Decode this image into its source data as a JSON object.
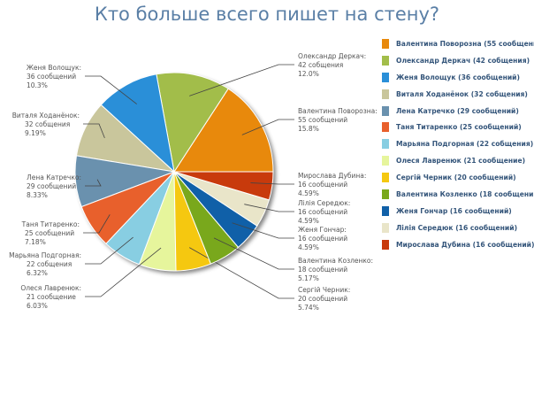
{
  "chart_data": {
    "type": "pie",
    "title": "Кто больше всего пишет на стену?",
    "legend_position": "right",
    "slices": [
      {
        "name": "Валентина Поворозна",
        "value": 55,
        "label": "Валентина Поворозна:",
        "count_text": "55 сообщений",
        "percent": "15.8%",
        "legend": "Валентина Поворозна (55 сообщений)",
        "color": "#e8890c"
      },
      {
        "name": "Олександр Деркач",
        "value": 42,
        "label": "Олександр Деркач:",
        "count_text": "42 собщения",
        "percent": "12.0%",
        "legend": "Олександр Деркач (42 собщения)",
        "color": "#a2bd4a"
      },
      {
        "name": "Женя Волощук",
        "value": 36,
        "label": "Женя Волощук:",
        "count_text": "36 сообщений",
        "percent": "10.3%",
        "legend": "Женя Волощук (36 сообщений)",
        "color": "#2a8fd8"
      },
      {
        "name": "Виталя Ходанёнок",
        "value": 32,
        "label": "Виталя Ходанёнок:",
        "count_text": "32 собщения",
        "percent": "9.19%",
        "legend": "Виталя Ходанёнок (32 собщения)",
        "color": "#c9c69c"
      },
      {
        "name": "Лена Катречко",
        "value": 29,
        "label": "Лена Катречко:",
        "count_text": "29 сообщений",
        "percent": "8.33%",
        "legend": "Лена Катречко (29 сообщений)",
        "color": "#6a91ae"
      },
      {
        "name": "Таня Титаренко",
        "value": 25,
        "label": "Таня Титаренко:",
        "count_text": "25 сообщений",
        "percent": "7.18%",
        "legend": "Таня Титаренко (25 сообщений)",
        "color": "#e8602c"
      },
      {
        "name": "Марьяна Подгорная",
        "value": 22,
        "label": "Марьяна Подгорная:",
        "count_text": "22 собщения",
        "percent": "6.32%",
        "legend": "Марьяна Подгорная (22 собщения)",
        "color": "#88cee2"
      },
      {
        "name": "Олеся Лавренюк",
        "value": 21,
        "label": "Олеся Лавренюк:",
        "count_text": "21 сообщение",
        "percent": "6.03%",
        "legend": "Олеся Лавренюк (21 сообщение)",
        "color": "#e6f59c"
      },
      {
        "name": "Сергій Черник",
        "value": 20,
        "label": "Сергій Черник:",
        "count_text": "20 сообщений",
        "percent": "5.74%",
        "legend": "Сергій Черник (20 сообщений)",
        "color": "#f5c810"
      },
      {
        "name": "Валентина Козленко",
        "value": 18,
        "label": "Валентина Козленко:",
        "count_text": "18 сообщений",
        "percent": "5.17%",
        "legend": "Валентина Козленко (18 сообщений)",
        "color": "#79a81c"
      },
      {
        "name": "Женя Гончар",
        "value": 16,
        "label": "Женя Гончар:",
        "count_text": "16 сообщений",
        "percent": "4.59%",
        "legend": "Женя Гончар (16 сообщений)",
        "color": "#1060a8"
      },
      {
        "name": "Лілія Середюк",
        "value": 16,
        "label": "Лілія Середюк:",
        "count_text": "16 сообщений",
        "percent": "4.59%",
        "legend": "Лілія Середюк (16 сообщений)",
        "color": "#e9e5c9"
      },
      {
        "name": "Мирослава Дубина",
        "value": 16,
        "label": "Мирослава Дубина:",
        "count_text": "16 сообщений",
        "percent": "4.59%",
        "legend": "Мирослава Дубина (16 сообщений)",
        "color": "#c83a0c"
      }
    ]
  }
}
